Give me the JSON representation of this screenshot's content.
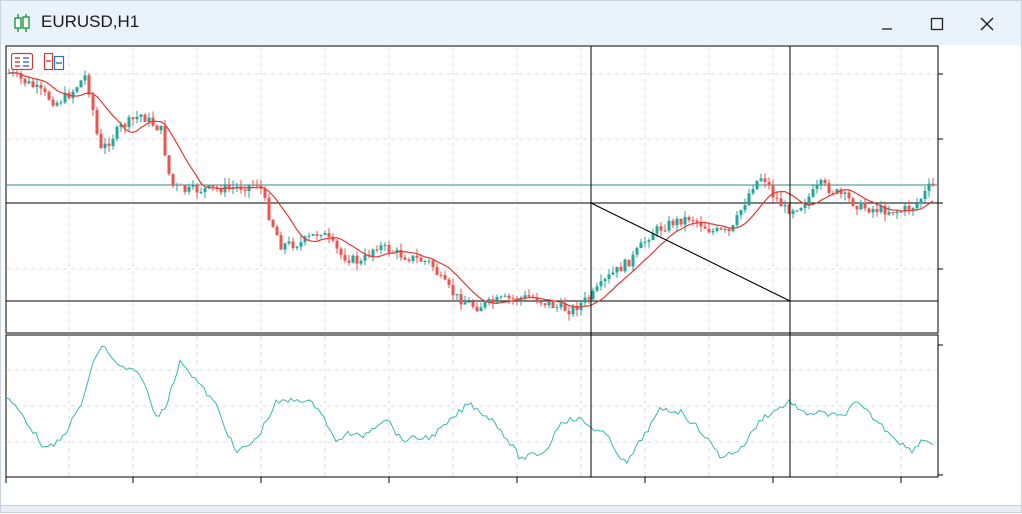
{
  "window": {
    "title": "EURUSD,H1",
    "controls": [
      "minimize",
      "maximize",
      "close"
    ]
  },
  "toolbar_icons": [
    "trade-panel-icon",
    "depth-of-market-icon"
  ],
  "chart": {
    "symbol": "EURUSD",
    "timeframe": "H1",
    "main_panel": {
      "type": "candlestick",
      "bull_color": "#26a69a",
      "bear_color": "#ef5350",
      "moving_average_color": "#e53935"
    },
    "horizontal_levels": [
      {
        "name": "upper-level",
        "color": "#2e8b86"
      },
      {
        "name": "middle-level",
        "color": "#000000"
      },
      {
        "name": "lower-level",
        "color": "#000000"
      }
    ],
    "oscillator_panel": {
      "line_color": "#3cb7b0"
    }
  },
  "colors": {
    "title_bar": "#eaf2fb",
    "grid": "#d8dde3"
  }
}
